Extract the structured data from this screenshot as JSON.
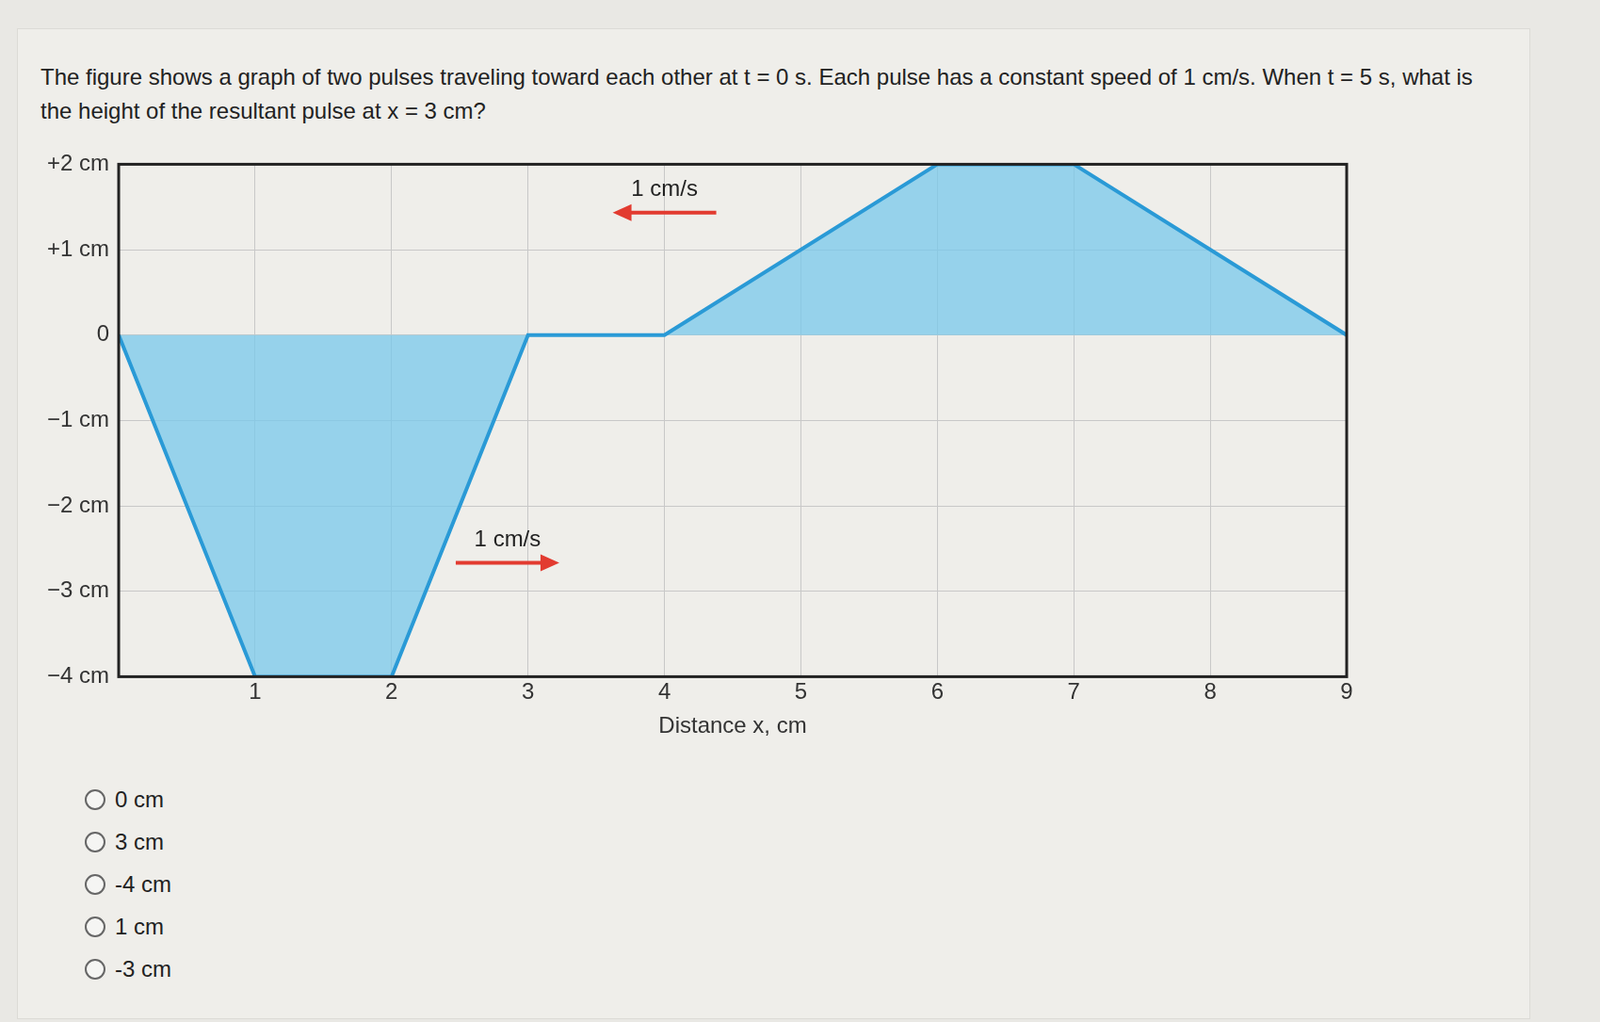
{
  "question": "The figure shows a graph of two pulses traveling toward each other at t = 0 s. Each pulse has a constant speed of 1 cm/s. When t = 5 s, what is the height of the resultant pulse at x = 3 cm?",
  "chart_data": {
    "type": "line",
    "x_label": "Distance x, cm",
    "x": [
      0,
      1,
      2,
      3,
      4,
      6,
      7,
      9
    ],
    "values": [
      0,
      -4,
      -4,
      0,
      0,
      2,
      2,
      0
    ],
    "color": "#2a9ad6",
    "xlim": [
      0,
      9
    ],
    "xticks": [
      1,
      2,
      3,
      4,
      5,
      6,
      7,
      8,
      9
    ],
    "ylim": [
      -4,
      2
    ],
    "yticks": [
      {
        "value": -4,
        "label": "−4 cm"
      },
      {
        "value": -3,
        "label": "−3 cm"
      },
      {
        "value": -2,
        "label": "−2 cm"
      },
      {
        "value": -1,
        "label": "−1 cm"
      },
      0,
      {
        "value": 1,
        "label": "+1 cm"
      },
      {
        "value": 2,
        "label": "+2 cm"
      }
    ],
    "grid": true,
    "annotations": [
      {
        "text": "1 cm/s",
        "x": 4,
        "y": 1.5,
        "direction": "left"
      },
      {
        "text": "1 cm/s",
        "x": 2.85,
        "y": -2.6,
        "direction": "right"
      }
    ]
  },
  "options": [
    "0 cm",
    "3 cm",
    "-4 cm",
    "1 cm",
    "-3 cm"
  ]
}
